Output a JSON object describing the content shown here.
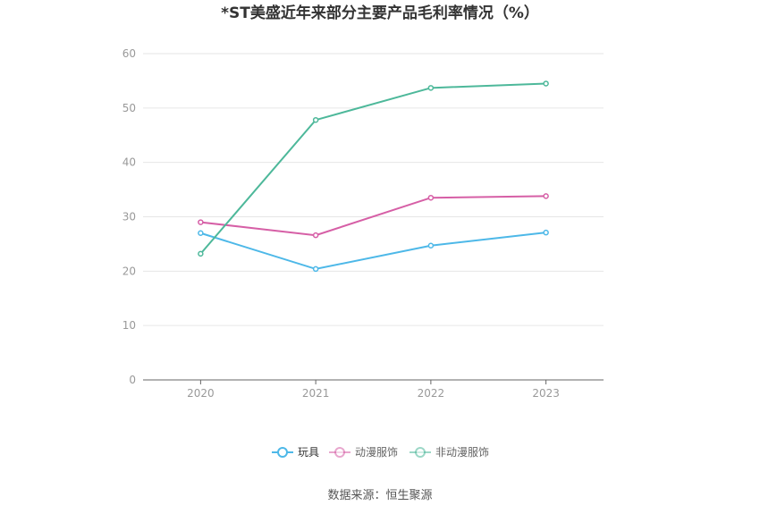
{
  "chart_data": {
    "type": "line",
    "title": "*ST美盛近年来部分主要产品毛利率情况（%）",
    "x": [
      "2020",
      "2021",
      "2022",
      "2023"
    ],
    "ylim": [
      0,
      60
    ],
    "yticks": [
      0,
      10,
      20,
      30,
      40,
      50,
      60
    ],
    "grid": true,
    "legend_position": "bottom",
    "series": [
      {
        "name": "玩具",
        "color": "#4db8e8",
        "values": [
          27.0,
          20.4,
          24.7,
          27.1
        ]
      },
      {
        "name": "动漫服饰",
        "color": "#d65fa6",
        "values": [
          29.0,
          26.6,
          33.5,
          33.8
        ]
      },
      {
        "name": "非动漫服饰",
        "color": "#4db89a",
        "values": [
          23.2,
          47.8,
          53.7,
          54.5
        ]
      }
    ],
    "source": "数据来源：恒生聚源"
  }
}
